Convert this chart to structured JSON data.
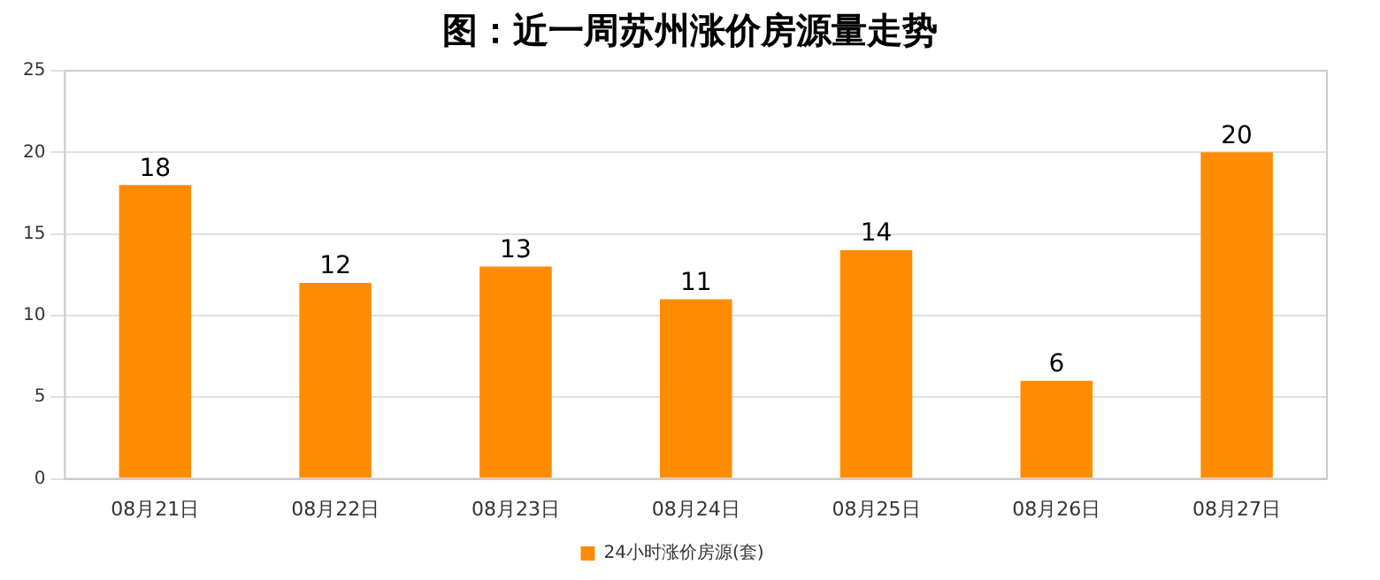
{
  "chart_data": {
    "type": "bar",
    "title": "图：近一周苏州涨价房源量走势",
    "categories": [
      "08月21日",
      "08月22日",
      "08月23日",
      "08月24日",
      "08月25日",
      "08月26日",
      "08月27日"
    ],
    "series": [
      {
        "name": "24小时涨价房源(套)",
        "color": "#ff8c00",
        "values": [
          18,
          12,
          13,
          11,
          14,
          6,
          20
        ]
      }
    ],
    "ylim": [
      0,
      25
    ],
    "yticks": [
      0,
      5,
      10,
      15,
      20,
      25
    ],
    "grid": "y",
    "legend": "bottom",
    "data_labels": true
  }
}
